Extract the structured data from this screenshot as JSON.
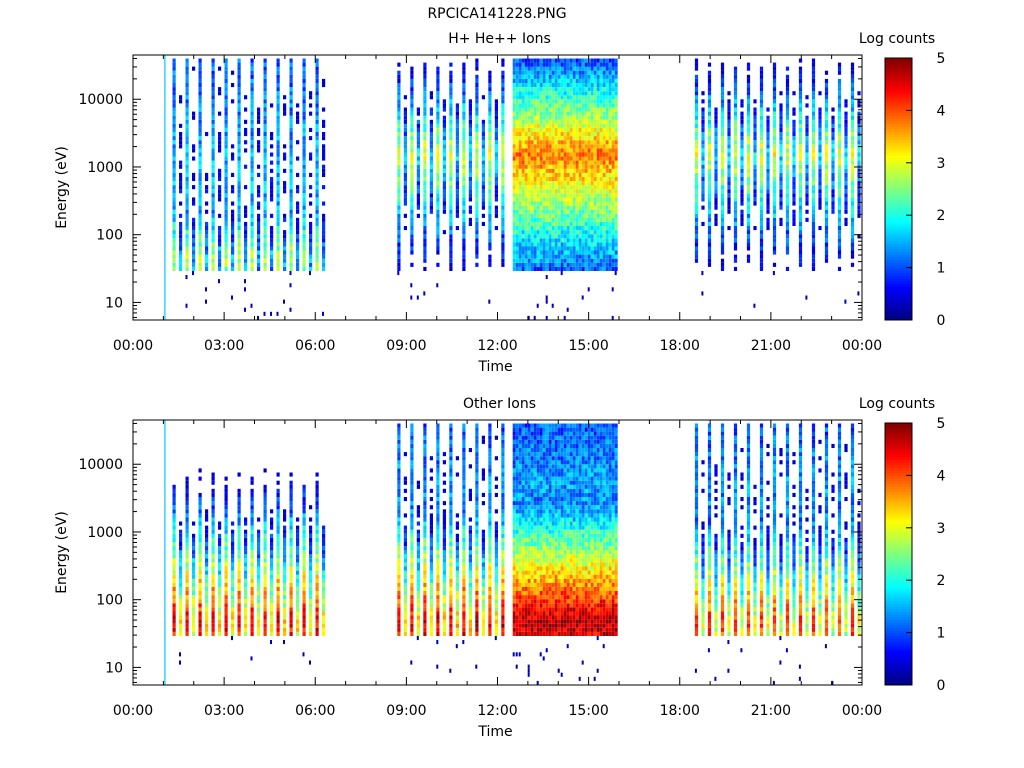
{
  "figure_title": "RPCICA141228.PNG",
  "chart_data": [
    {
      "type": "heatmap",
      "title": "H+ He++ Ions",
      "xlabel": "Time",
      "ylabel": "Energy (eV)",
      "x_ticks": [
        "00:00",
        "03:00",
        "06:00",
        "09:00",
        "12:00",
        "15:00",
        "18:00",
        "21:00",
        "00:00"
      ],
      "x_range_hours": [
        0,
        24
      ],
      "y_scale": "log",
      "y_range": [
        5.5,
        45000
      ],
      "y_ticks": [
        10,
        100,
        1000,
        10000
      ],
      "y_tick_labels": [
        "10",
        "100",
        "1000",
        "10000"
      ],
      "colorbar": {
        "label": "Log counts",
        "range": [
          0,
          5
        ],
        "ticks": [
          "0",
          "1",
          "2",
          "3",
          "4",
          "5"
        ]
      },
      "marker_hour": 1.05,
      "blocks": [
        {
          "start": 1.3,
          "end": 6.4,
          "peak_energy": 45,
          "level": 2.8,
          "sweeps": true
        },
        {
          "start": 8.7,
          "end": 12.2,
          "peak_energy": 1500,
          "level": 3.0,
          "sweeps": true
        },
        {
          "start": 12.5,
          "end": 15.9,
          "peak_energy": 1500,
          "level": 3.8,
          "sweeps": false
        },
        {
          "start": 18.5,
          "end": 23.9,
          "peak_energy": 1500,
          "level": 3.0,
          "sweeps": true
        }
      ]
    },
    {
      "type": "heatmap",
      "title": "Other Ions",
      "xlabel": "Time",
      "ylabel": "Energy (eV)",
      "x_ticks": [
        "00:00",
        "03:00",
        "06:00",
        "09:00",
        "12:00",
        "15:00",
        "18:00",
        "21:00",
        "00:00"
      ],
      "x_range_hours": [
        0,
        24
      ],
      "y_scale": "log",
      "y_range": [
        5.5,
        45000
      ],
      "y_ticks": [
        10,
        100,
        1000,
        10000
      ],
      "y_tick_labels": [
        "10",
        "100",
        "1000",
        "10000"
      ],
      "colorbar": {
        "label": "Log counts",
        "range": [
          0,
          5
        ],
        "ticks": [
          "0",
          "1",
          "2",
          "3",
          "4",
          "5"
        ]
      },
      "marker_hour": 1.05,
      "blocks": [
        {
          "start": 1.3,
          "end": 6.4,
          "peak_energy": 45,
          "level": 4.5,
          "sweeps": true
        },
        {
          "start": 8.7,
          "end": 12.2,
          "peak_energy": 45,
          "level": 4.6,
          "sweeps": true
        },
        {
          "start": 12.5,
          "end": 15.9,
          "peak_energy": 45,
          "level": 4.8,
          "sweeps": false
        },
        {
          "start": 18.5,
          "end": 23.9,
          "peak_energy": 45,
          "level": 4.2,
          "sweeps": true
        }
      ]
    }
  ]
}
